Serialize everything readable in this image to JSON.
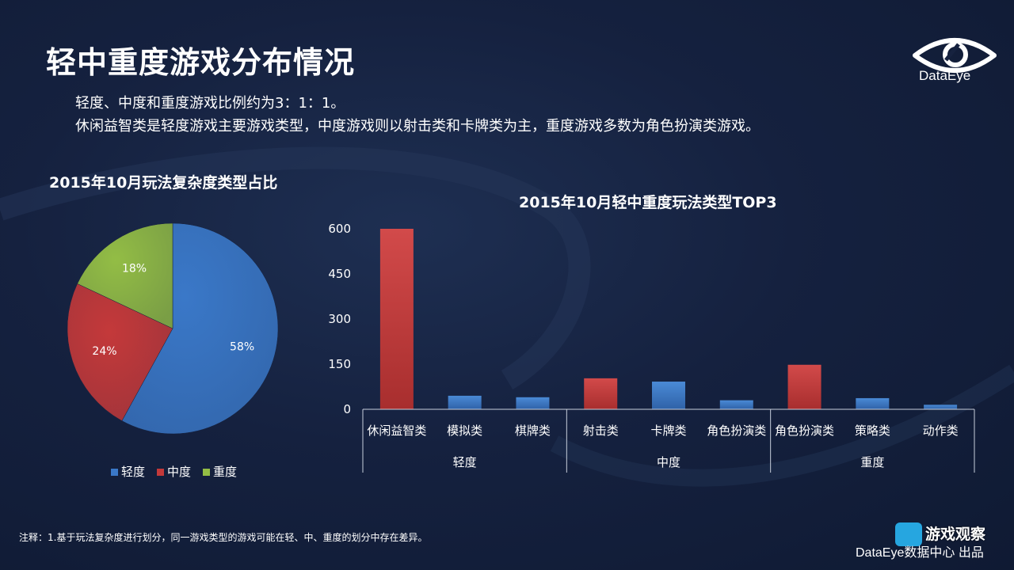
{
  "page": {
    "title": "轻中重度游戏分布情况",
    "intro_lines": [
      "轻度、中度和重度游戏比例约为3：1：1。",
      "休闲益智类是轻度游戏主要游戏类型，中度游戏则以射击类和卡牌类为主，重度游戏多数为角色扮演类游戏。"
    ],
    "logo_text": "DataEye",
    "footnote": "注释：1.基于玩法复杂度进行划分，同一游戏类型的游戏可能在轻、中、重度的划分中存在差异。",
    "footer_brand": "DataEye数据中心 出品",
    "watermark_text": "游戏观察",
    "colors": {
      "blue": "#3a78c8",
      "red": "#c4393a",
      "green": "#93bd45",
      "background": "#16223f"
    }
  },
  "chart_data": [
    {
      "type": "pie",
      "title": "2015年10月玩法复杂度类型占比",
      "labels": [
        "轻度",
        "中度",
        "重度"
      ],
      "values": [
        58,
        24,
        18
      ],
      "value_labels": [
        "58%",
        "24%",
        "18%"
      ],
      "colors": [
        "#3a78c8",
        "#c4393a",
        "#93bd45"
      ],
      "legend_position": "bottom"
    },
    {
      "type": "bar",
      "title": "2015年10月轻中重度玩法类型TOP3",
      "categories": [
        "休闲益智类",
        "模拟类",
        "棋牌类",
        "射击类",
        "卡牌类",
        "角色扮演类",
        "角色扮演类",
        "策略类",
        "动作类"
      ],
      "groups": [
        {
          "name": "轻度",
          "count": 3
        },
        {
          "name": "中度",
          "count": 3
        },
        {
          "name": "重度",
          "count": 3
        }
      ],
      "values": [
        600,
        45,
        40,
        103,
        92,
        30,
        148,
        37,
        15
      ],
      "bar_colors": [
        "#c4393a",
        "#3a78c8",
        "#3a78c8",
        "#c4393a",
        "#3a78c8",
        "#3a78c8",
        "#c4393a",
        "#3a78c8",
        "#3a78c8"
      ],
      "yticks": [
        0,
        150,
        300,
        450,
        600
      ],
      "ylim": [
        0,
        600
      ],
      "grid": false
    }
  ]
}
